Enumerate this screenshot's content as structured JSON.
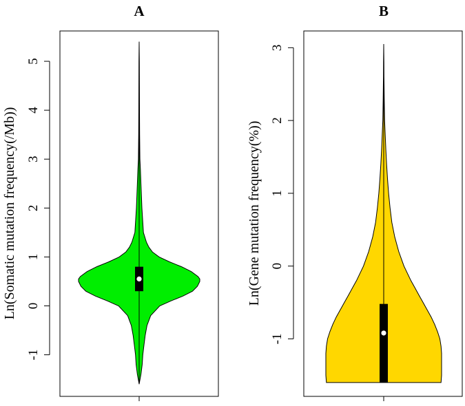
{
  "chart_data": [
    {
      "type": "violin",
      "title": "A",
      "ylabel": "Ln(Somatic mutation frequency(/Mb))",
      "xlabel": "",
      "ylim": [
        -1.85,
        5.62
      ],
      "yticks": [
        -1,
        0,
        1,
        2,
        3,
        4,
        5
      ],
      "color": "#00ee00",
      "grid": false,
      "distribution": {
        "y": [
          -1.6,
          -1.4,
          -1.2,
          -1.0,
          -0.8,
          -0.6,
          -0.4,
          -0.2,
          0.0,
          0.1,
          0.2,
          0.3,
          0.4,
          0.5,
          0.55,
          0.6,
          0.7,
          0.8,
          0.9,
          1.0,
          1.1,
          1.2,
          1.3,
          1.5,
          2.0,
          2.5,
          2.8,
          3.0,
          3.5,
          4.0,
          4.5,
          5.0,
          5.4
        ],
        "width": [
          0.0,
          0.03,
          0.05,
          0.06,
          0.08,
          0.1,
          0.13,
          0.19,
          0.34,
          0.52,
          0.72,
          0.88,
          0.96,
          1.0,
          1.0,
          0.97,
          0.86,
          0.7,
          0.5,
          0.33,
          0.22,
          0.16,
          0.12,
          0.07,
          0.045,
          0.03,
          0.02,
          0.012,
          0.008,
          0.006,
          0.004,
          0.003,
          0.0
        ]
      },
      "box": {
        "q1": 0.3,
        "median": 0.55,
        "q3": 0.8,
        "whisker_low": -1.6,
        "whisker_high": 5.4
      }
    },
    {
      "type": "violin",
      "title": "B",
      "ylabel": "Ln(Gene mutation frequency(%))",
      "xlabel": "",
      "ylim": [
        -1.79,
        3.23
      ],
      "yticks": [
        -1,
        0,
        1,
        2,
        3
      ],
      "color": "#ffd700",
      "grid": false,
      "distribution": {
        "y": [
          -1.6,
          -1.5,
          -1.4,
          -1.3,
          -1.2,
          -1.1,
          -1.0,
          -0.9,
          -0.8,
          -0.7,
          -0.6,
          -0.5,
          -0.4,
          -0.3,
          -0.2,
          0.0,
          0.2,
          0.4,
          0.6,
          0.8,
          1.0,
          1.2,
          1.4,
          1.6,
          1.8,
          2.0,
          2.3,
          2.6,
          2.8,
          3.05
        ],
        "width": [
          0.99,
          1.0,
          1.0,
          1.0,
          1.0,
          0.99,
          0.97,
          0.93,
          0.88,
          0.82,
          0.75,
          0.68,
          0.61,
          0.54,
          0.47,
          0.35,
          0.26,
          0.19,
          0.14,
          0.11,
          0.085,
          0.065,
          0.05,
          0.037,
          0.026,
          0.016,
          0.009,
          0.005,
          0.003,
          0.0
        ]
      },
      "box": {
        "q1": -1.6,
        "median": -0.92,
        "q3": -0.52,
        "whisker_low": -1.6,
        "whisker_high": 3.05
      }
    }
  ]
}
